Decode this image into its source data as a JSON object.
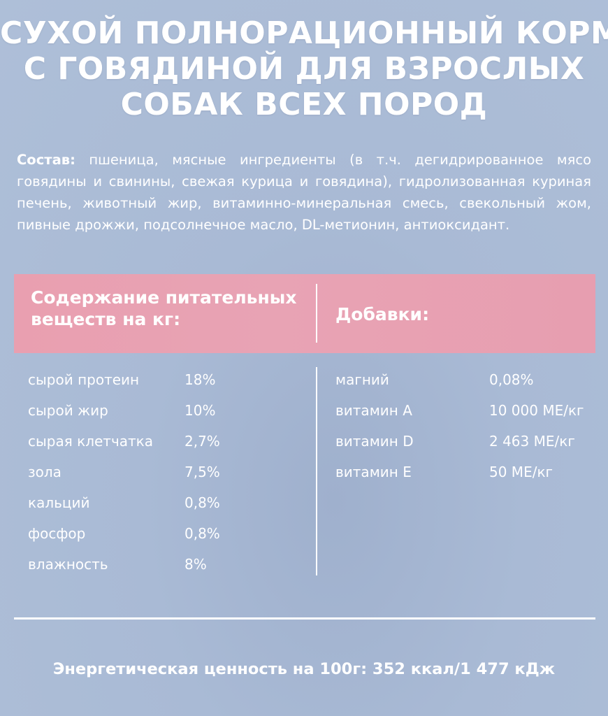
{
  "title": {
    "line1": "СУХОЙ ПОЛНОРАЦИОННЫЙ КОРМ",
    "line2": "С ГОВЯДИНОЙ ДЛЯ ВЗРОСЛЫХ",
    "line3": "СОБАК ВСЕХ ПОРОД"
  },
  "composition": {
    "label": "Состав:",
    "text": "пшеница, мясные ингредиенты (в т.ч. дегидрированное мясо говядины и свинины, свежая курица и говядина), гидролизованная куриная печень, животный жир, витаминно-минеральная смесь, свекольный жом, пивные дрожжи, подсолнечное масло, DL-метионин, антиоксидант."
  },
  "nutrients": {
    "heading": "Содержание питательных веществ на кг:",
    "items": [
      {
        "name": "сырой протеин",
        "value": "18%"
      },
      {
        "name": "сырой жир",
        "value": "10%"
      },
      {
        "name": "сырая клетчатка",
        "value": "2,7%"
      },
      {
        "name": "зола",
        "value": "7,5%"
      },
      {
        "name": "кальций",
        "value": "0,8%"
      },
      {
        "name": "фосфор",
        "value": "0,8%"
      },
      {
        "name": "влажность",
        "value": "8%"
      }
    ]
  },
  "additives": {
    "heading": "Добавки:",
    "items": [
      {
        "name": "магний",
        "value": "0,08%"
      },
      {
        "name": "витамин А",
        "value": "10 000 МЕ/кг"
      },
      {
        "name": "витамин D",
        "value": "2 463 МЕ/кг"
      },
      {
        "name": "витамин Е",
        "value": "50 МЕ/кг"
      }
    ]
  },
  "energy": "Энергетическая ценность на 100г: 352 ккал/1 477 кДж",
  "colors": {
    "background": "#aebfd8",
    "band": "#e8a3b4",
    "text": "#ffffff"
  }
}
